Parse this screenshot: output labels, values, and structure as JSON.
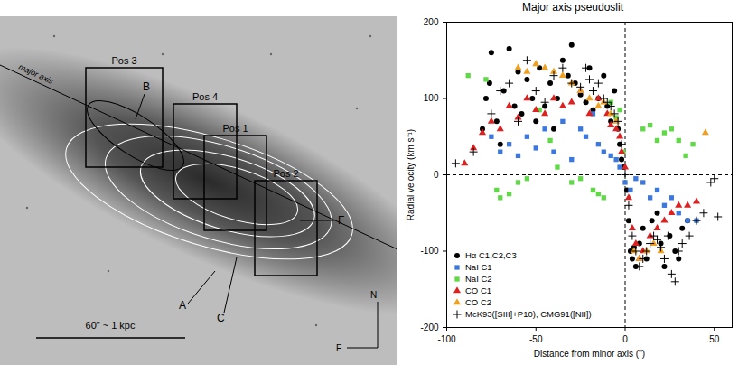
{
  "chart_data": {
    "type": "scatter",
    "title": "Major axis pseudoslit",
    "x_label": "Distance from minor axis ('')",
    "y_label": "Radial velocity (km s⁻¹)",
    "xlim": [
      -100,
      60
    ],
    "xticks": [
      -100,
      -50,
      0,
      50
    ],
    "ylim": [
      -200,
      200
    ],
    "yticks": [
      -200,
      -100,
      0,
      100,
      200
    ],
    "reference_lines": {
      "x": [
        0
      ],
      "y": [
        0
      ]
    },
    "legend": "lower left",
    "series": [
      {
        "name": "Hα C1,C2,C3",
        "color": "#000000",
        "marker": "circle",
        "x": [
          -80,
          -78,
          -76,
          -75,
          -72,
          -70,
          -68,
          -65,
          -62,
          -60,
          -58,
          -55,
          -52,
          -50,
          -48,
          -45,
          -42,
          -40,
          -38,
          -35,
          -32,
          -30,
          -28,
          -25,
          -22,
          -20,
          -18,
          -15,
          -12,
          -10,
          -8,
          -6,
          -4,
          -3,
          -2,
          -1,
          1,
          2,
          3,
          4,
          5,
          6,
          8,
          10,
          12,
          15,
          18,
          20,
          22,
          25,
          28,
          30,
          32,
          35
        ],
        "values": [
          60,
          100,
          120,
          160,
          70,
          40,
          110,
          165,
          90,
          135,
          80,
          125,
          100,
          70,
          140,
          90,
          120,
          60,
          100,
          150,
          130,
          170,
          120,
          105,
          95,
          140,
          85,
          100,
          130,
          90,
          70,
          110,
          60,
          40,
          20,
          10,
          -20,
          -60,
          -100,
          -110,
          -95,
          -120,
          -90,
          -70,
          -110,
          -60,
          -50,
          -90,
          -120,
          -80,
          -100,
          -110,
          -70,
          -60
        ]
      },
      {
        "name": "NaI C1",
        "color": "#3a78e0",
        "marker": "square",
        "x": [
          -75,
          -70,
          -65,
          -60,
          -55,
          -50,
          -45,
          -40,
          -35,
          -30,
          -25,
          -22,
          -18,
          -15,
          -12,
          -8,
          -5,
          -3,
          0,
          3,
          6,
          10,
          14,
          18,
          22,
          26,
          30,
          35,
          40
        ],
        "values": [
          50,
          30,
          40,
          25,
          50,
          35,
          60,
          30,
          70,
          20,
          60,
          50,
          80,
          40,
          30,
          25,
          20,
          10,
          -10,
          -20,
          -5,
          -10,
          -30,
          -20,
          -40,
          -30,
          -50,
          -60,
          -60
        ]
      },
      {
        "name": "NaI C2",
        "color": "#5fd945",
        "marker": "square",
        "x": [
          -88,
          -78,
          -72,
          -70,
          -65,
          -60,
          -55,
          -48,
          -42,
          -38,
          -30,
          -25,
          -18,
          -15,
          -12,
          -8,
          -5,
          -3,
          -1,
          10,
          14,
          18,
          22,
          26,
          30,
          34,
          38
        ],
        "values": [
          130,
          125,
          -20,
          -30,
          -25,
          -10,
          -5,
          85,
          45,
          10,
          -10,
          -5,
          -20,
          -25,
          -30,
          95,
          75,
          85,
          30,
          60,
          65,
          45,
          55,
          60,
          45,
          25,
          40
        ]
      },
      {
        "name": "CO C1",
        "color": "#dd2020",
        "marker": "triangle",
        "x": [
          -90,
          -85,
          -80,
          -75,
          -70,
          -65,
          -60,
          -55,
          -50,
          -45,
          -40,
          -35,
          -30,
          -25,
          -20,
          -15,
          -10,
          -8,
          -5,
          -3,
          -2,
          0,
          2,
          4,
          6,
          8,
          10,
          14,
          18,
          22,
          26,
          30,
          35,
          40
        ],
        "values": [
          15,
          35,
          55,
          70,
          60,
          90,
          75,
          100,
          85,
          80,
          100,
          90,
          95,
          110,
          80,
          100,
          80,
          65,
          60,
          50,
          30,
          10,
          -30,
          -70,
          -90,
          -110,
          -100,
          -80,
          -70,
          -60,
          -50,
          -40,
          -40,
          -35
        ]
      },
      {
        "name": "CO C2",
        "color": "#f0a020",
        "marker": "triangle",
        "x": [
          -60,
          -55,
          -50,
          -45,
          -40,
          -35,
          -30,
          -25,
          -20,
          -15,
          -12,
          -8,
          -5,
          5,
          8,
          12,
          16,
          20,
          45
        ],
        "values": [
          140,
          135,
          145,
          140,
          135,
          130,
          120,
          110,
          100,
          90,
          95,
          80,
          70,
          -100,
          -110,
          -100,
          -90,
          -100,
          55
        ]
      },
      {
        "name": "McK93([SIII]+P10), CMG91([NII])",
        "color": "#000000",
        "marker": "plus",
        "x": [
          -95,
          -85,
          -75,
          -70,
          -65,
          -60,
          -55,
          -50,
          -45,
          -40,
          -35,
          -30,
          -25,
          -22,
          -20,
          -18,
          -15,
          -12,
          -10,
          -8,
          -6,
          -4,
          -2,
          0,
          2,
          4,
          6,
          8,
          10,
          12,
          14,
          16,
          18,
          20,
          22,
          24,
          26,
          28,
          30,
          32,
          36,
          40,
          44,
          48,
          50,
          52
        ],
        "values": [
          15,
          30,
          80,
          110,
          120,
          70,
          150,
          110,
          95,
          130,
          140,
          120,
          115,
          140,
          125,
          110,
          120,
          100,
          95,
          90,
          80,
          70,
          40,
          0,
          -40,
          -80,
          -100,
          -120,
          -110,
          -100,
          -90,
          -80,
          -85,
          -95,
          -110,
          -80,
          -130,
          -140,
          -100,
          -90,
          -80,
          -60,
          -50,
          -10,
          -5,
          -55
        ]
      }
    ]
  },
  "image_panel": {
    "positions": [
      "Pos 3",
      "Pos 4",
      "Pos 1",
      "Pos 2"
    ],
    "regions": [
      "B",
      "A",
      "C",
      "F"
    ],
    "major_axis_label": "major axis",
    "scale_bar_label": "60\" ~ 1 kpc",
    "compass": [
      "N",
      "E"
    ]
  }
}
